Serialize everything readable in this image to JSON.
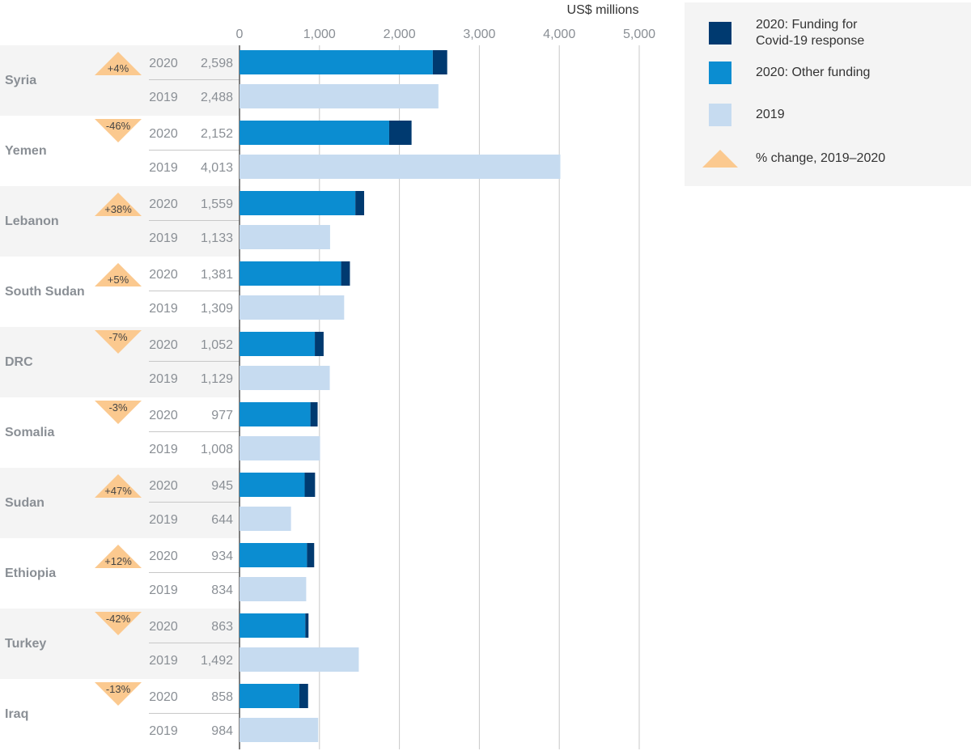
{
  "chart_data": {
    "type": "bar",
    "orientation": "horizontal",
    "unit_label": "US$ millions",
    "xlim": [
      0,
      5000
    ],
    "xticks": [
      {
        "value": 0,
        "label": "0"
      },
      {
        "value": 1000,
        "label": "1,000"
      },
      {
        "value": 2000,
        "label": "2,000"
      },
      {
        "value": 3000,
        "label": "3,000"
      },
      {
        "value": 4000,
        "label": "4,000"
      },
      {
        "value": 5000,
        "label": "5,000"
      }
    ],
    "grid": true,
    "colors": {
      "covid": "#003a70",
      "other": "#0b8dd1",
      "y2019": "#c6dbf0",
      "change": "#fbc98f",
      "band": "#f4f4f4"
    },
    "legend": {
      "placement": "top-right",
      "items": [
        {
          "key": "covid",
          "label_line1": "2020: Funding for",
          "label_line2": "Covid-19 response"
        },
        {
          "key": "other",
          "label_line1": "2020: Other funding",
          "label_line2": ""
        },
        {
          "key": "y2019",
          "label_line1": "2019",
          "label_line2": ""
        },
        {
          "key": "change",
          "label_line1": "% change, 2019–2020",
          "label_line2": ""
        }
      ]
    },
    "countries": [
      {
        "name": "Syria",
        "change": "+4%",
        "direction": "up",
        "y2020": {
          "year": "2020",
          "total": 2598,
          "label": "2,598",
          "covid": 180
        },
        "y2019": {
          "year": "2019",
          "total": 2488,
          "label": "2,488"
        }
      },
      {
        "name": "Yemen",
        "change": "-46%",
        "direction": "down",
        "y2020": {
          "year": "2020",
          "total": 2152,
          "label": "2,152",
          "covid": 280
        },
        "y2019": {
          "year": "2019",
          "total": 4013,
          "label": "4,013"
        }
      },
      {
        "name": "Lebanon",
        "change": "+38%",
        "direction": "up",
        "y2020": {
          "year": "2020",
          "total": 1559,
          "label": "1,559",
          "covid": 110
        },
        "y2019": {
          "year": "2019",
          "total": 1133,
          "label": "1,133"
        }
      },
      {
        "name": "South Sudan",
        "change": "+5%",
        "direction": "up",
        "y2020": {
          "year": "2020",
          "total": 1381,
          "label": "1,381",
          "covid": 110
        },
        "y2019": {
          "year": "2019",
          "total": 1309,
          "label": "1,309"
        }
      },
      {
        "name": "DRC",
        "change": "-7%",
        "direction": "down",
        "y2020": {
          "year": "2020",
          "total": 1052,
          "label": "1,052",
          "covid": 110
        },
        "y2019": {
          "year": "2019",
          "total": 1129,
          "label": "1,129"
        }
      },
      {
        "name": "Somalia",
        "change": "-3%",
        "direction": "down",
        "y2020": {
          "year": "2020",
          "total": 977,
          "label": "977",
          "covid": 90
        },
        "y2019": {
          "year": "2019",
          "total": 1008,
          "label": "1,008"
        }
      },
      {
        "name": "Sudan",
        "change": "+47%",
        "direction": "up",
        "y2020": {
          "year": "2020",
          "total": 945,
          "label": "945",
          "covid": 130
        },
        "y2019": {
          "year": "2019",
          "total": 644,
          "label": "644"
        }
      },
      {
        "name": "Ethiopia",
        "change": "+12%",
        "direction": "up",
        "y2020": {
          "year": "2020",
          "total": 934,
          "label": "934",
          "covid": 90
        },
        "y2019": {
          "year": "2019",
          "total": 834,
          "label": "834"
        }
      },
      {
        "name": "Turkey",
        "change": "-42%",
        "direction": "down",
        "y2020": {
          "year": "2020",
          "total": 863,
          "label": "863",
          "covid": 40
        },
        "y2019": {
          "year": "2019",
          "total": 1492,
          "label": "1,492"
        }
      },
      {
        "name": "Iraq",
        "change": "-13%",
        "direction": "down",
        "y2020": {
          "year": "2020",
          "total": 858,
          "label": "858",
          "covid": 110
        },
        "y2019": {
          "year": "2019",
          "total": 984,
          "label": "984"
        }
      }
    ]
  }
}
